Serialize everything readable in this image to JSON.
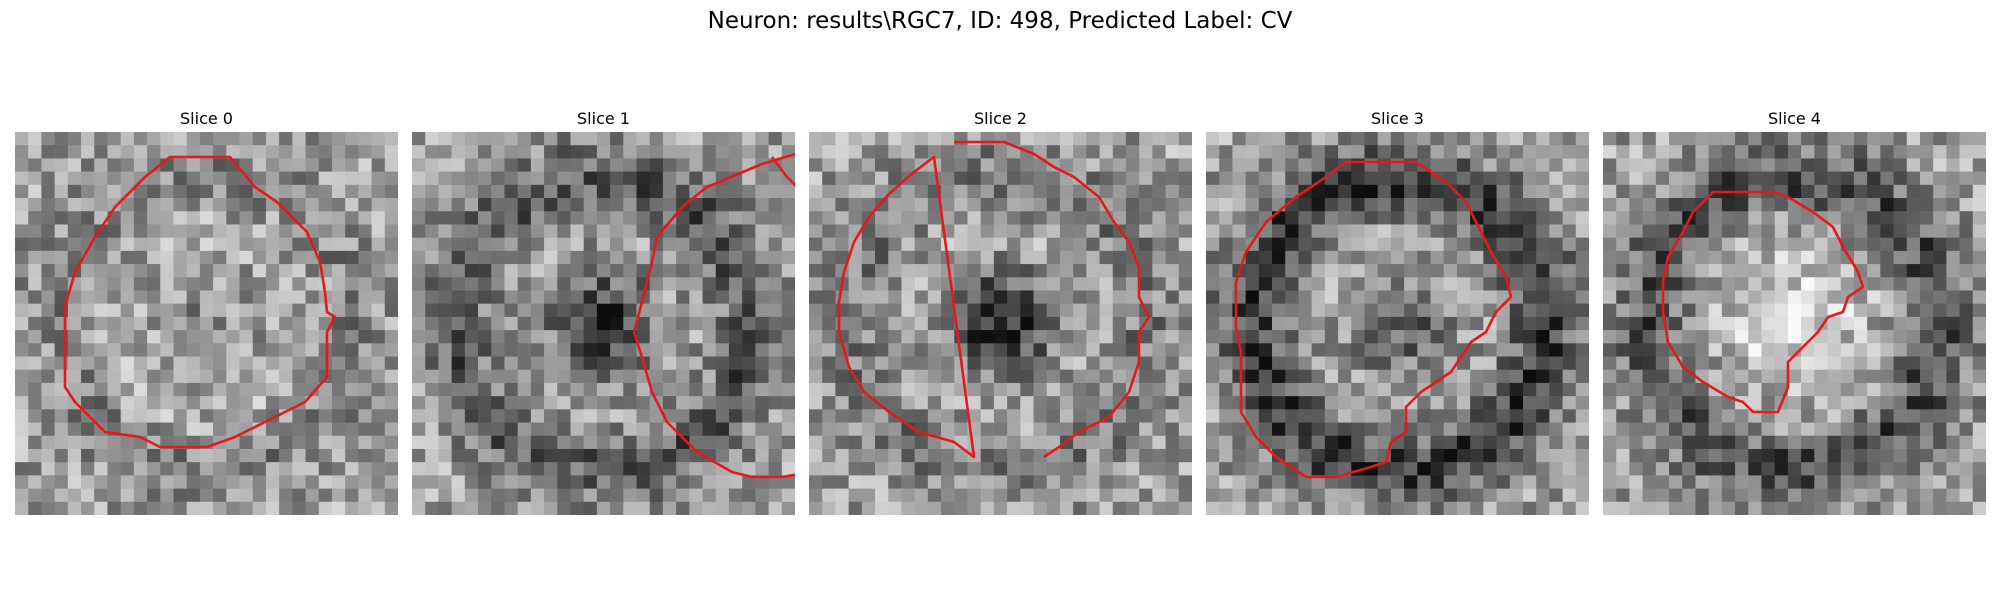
{
  "figure": {
    "title": "Neuron: results\\RGC7, ID: 498, Predicted Label: CV"
  },
  "panels": [
    {
      "title": "Slice 0",
      "seed": 11,
      "center_dark": 0.15,
      "ring": 0.1
    },
    {
      "title": "Slice 1",
      "seed": 23,
      "center_dark": 0.55,
      "ring": 0.3
    },
    {
      "title": "Slice 2",
      "seed": 37,
      "center_dark": 0.6,
      "ring": 0.15
    },
    {
      "title": "Slice 3",
      "seed": 41,
      "center_dark": 0.35,
      "ring": 0.45
    },
    {
      "title": "Slice 4",
      "seed": 53,
      "center_dark": -0.25,
      "ring": 0.35
    }
  ],
  "contour_color": "#e31a1c",
  "colormap": "gray"
}
